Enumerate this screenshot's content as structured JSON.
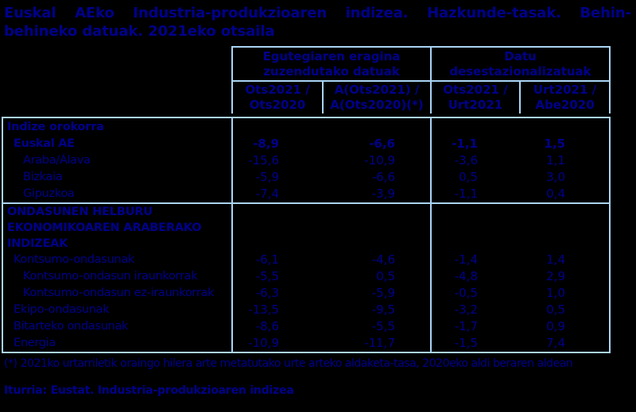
{
  "colors": {
    "background": "#000000",
    "text_navy": "#00008B",
    "table_border": "#AAD4F5"
  },
  "chart_data": {
    "type": "table",
    "title": "Euskal AEko Industria-produkzioaren indizea. Hazkunde-tasak. Behin-behineko datuak. 2021eko otsaila",
    "column_groups": [
      "Egutegiaren eragina zuzendutako datuak",
      "Datu desestazionalizatuak"
    ],
    "columns": [
      "Ots2021 / Ots2020",
      "A(Ots2021) / A(Ots2020)(*)",
      "Ots2021 / Urt2021",
      "Urt2021 / Abe2020"
    ],
    "sections": [
      {
        "header": "Indize orokorra",
        "rows": [
          {
            "label": "Euskal AE",
            "indent": 1,
            "bold": true,
            "values": [
              "-8,9",
              "-6,6",
              "-1,1",
              "1,5"
            ]
          },
          {
            "label": "Araba/Álava",
            "indent": 2,
            "bold": false,
            "values": [
              "-15,6",
              "-10,9",
              "-3,6",
              "1,1"
            ]
          },
          {
            "label": "Bizkaia",
            "indent": 2,
            "bold": false,
            "values": [
              "-5,9",
              "-6,6",
              "0,5",
              "3,0"
            ]
          },
          {
            "label": "Gipuzkoa",
            "indent": 2,
            "bold": false,
            "values": [
              "-7,4",
              "-3,9",
              "-1,1",
              "0,4"
            ]
          }
        ]
      },
      {
        "header": "ONDASUNEN HELBURU EKONOMIKOAREN ARABERAKO INDIZEAK",
        "rows": [
          {
            "label": "Kontsumo-ondasunak",
            "indent": 1,
            "bold": false,
            "values": [
              "-6,1",
              "-4,6",
              "-1,4",
              "1,4"
            ]
          },
          {
            "label": "Kontsumo-ondasun iraunkorrak",
            "indent": 2,
            "bold": false,
            "values": [
              "-5,5",
              "0,5",
              "-4,8",
              "2,9"
            ]
          },
          {
            "label": "Kontsumo-ondasun ez-iraunkorrak",
            "indent": 2,
            "bold": false,
            "values": [
              "-6,3",
              "-5,9",
              "-0,5",
              "1,0"
            ]
          },
          {
            "label": "Ekipo-ondasunak",
            "indent": 1,
            "bold": false,
            "values": [
              "-13,5",
              "-9,5",
              "-3,2",
              "0,5"
            ]
          },
          {
            "label": "Bitarteko ondasunak",
            "indent": 1,
            "bold": false,
            "values": [
              "-8,6",
              "-5,5",
              "-1,7",
              "0,9"
            ]
          },
          {
            "label": "Energia",
            "indent": 1,
            "bold": false,
            "values": [
              "-10,9",
              "-11,7",
              "-1,5",
              "7,4"
            ]
          }
        ]
      }
    ],
    "footnote": "(*) 2021ko urtarriletik oraingo hilera arte metatutako urte arteko aldaketa-tasa, 2020eko aldi beraren aldean",
    "source": "Iturria: Eustat. Industria-produkzioaren indizea"
  }
}
